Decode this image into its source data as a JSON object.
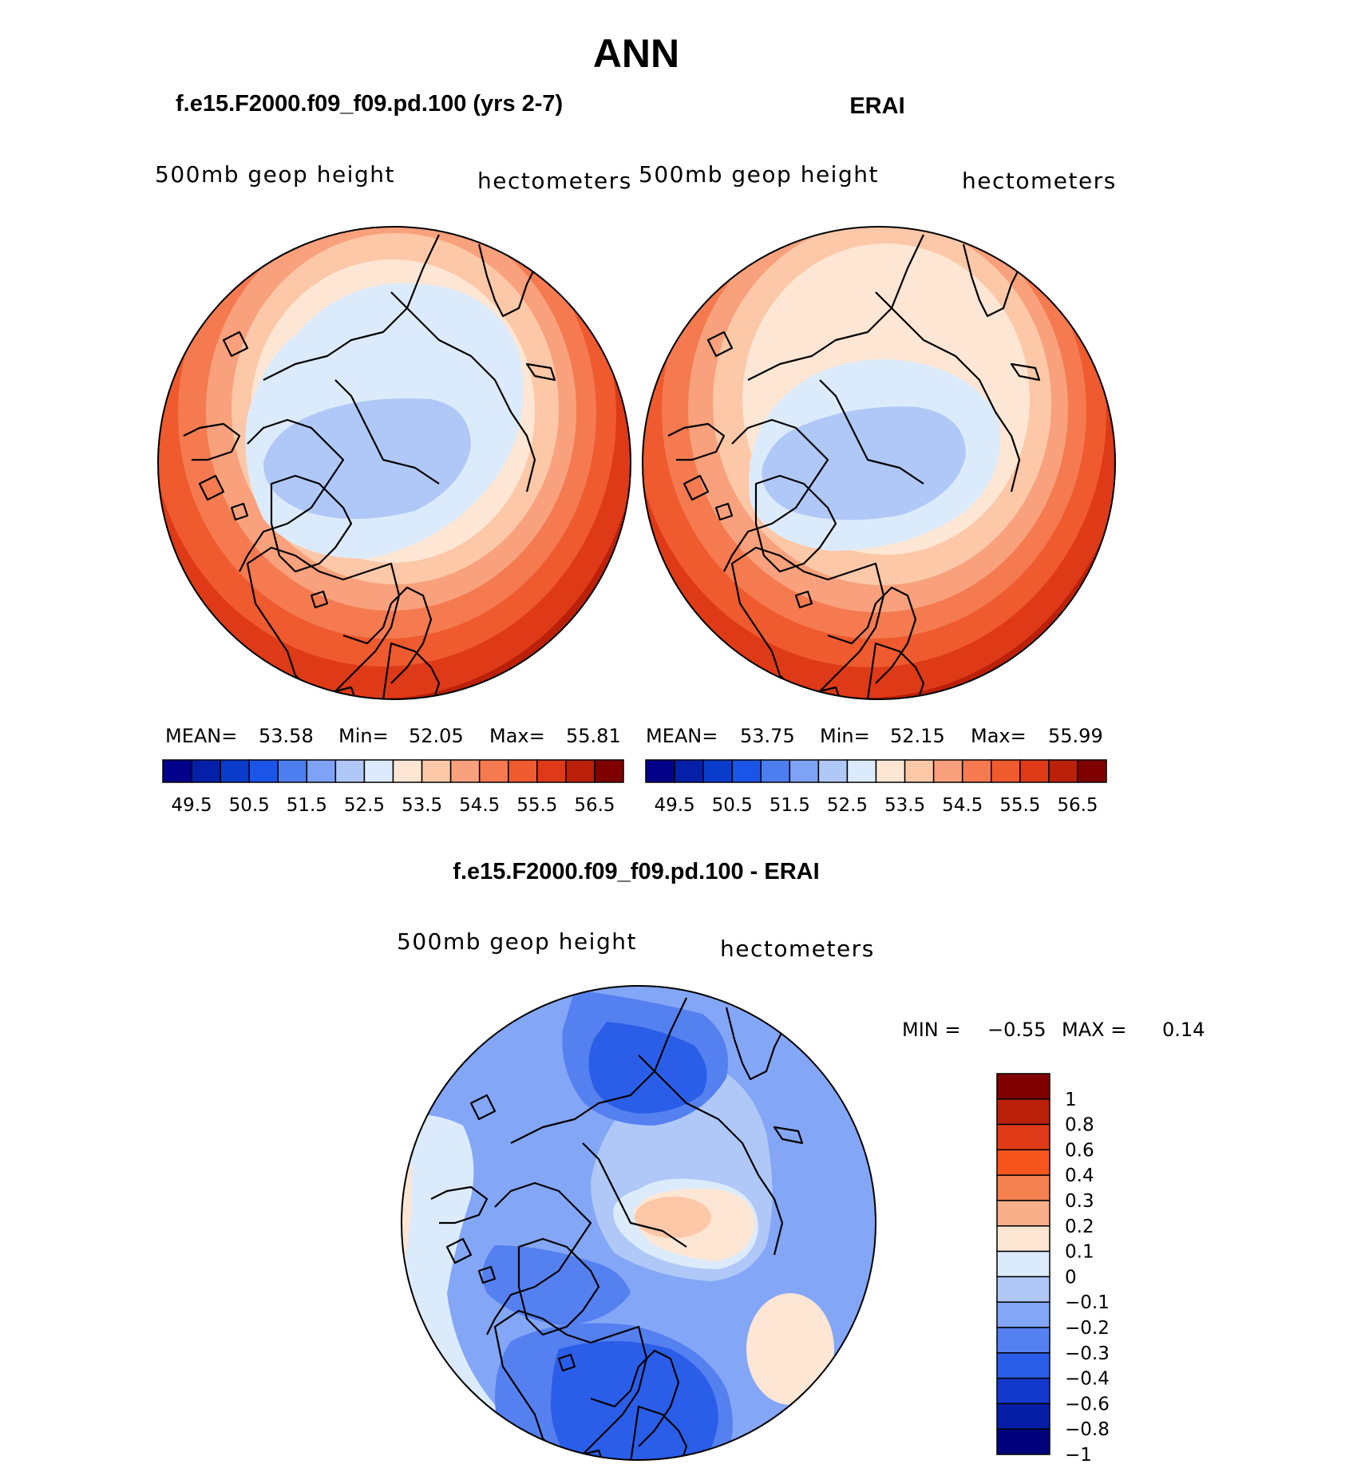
{
  "main_title": "ANN",
  "panels": {
    "left": {
      "case_title": "f.e15.F2000.f09_f09.pd.100 (yrs 2-7)",
      "variable_label": "500mb geop height",
      "units_label": "hectometers",
      "stats": {
        "mean_label": "MEAN=",
        "mean": "53.58",
        "min_label": "Min=",
        "min": "52.05",
        "max_label": "Max=",
        "max": "55.81"
      },
      "colorbar_labels": [
        "49.5",
        "50.5",
        "51.5",
        "52.5",
        "53.5",
        "54.5",
        "55.5",
        "56.5"
      ]
    },
    "right": {
      "case_title": "ERAI",
      "variable_label": "500mb geop height",
      "units_label": "hectometers",
      "stats": {
        "mean_label": "MEAN=",
        "mean": "53.75",
        "min_label": "Min=",
        "min": "52.15",
        "max_label": "Max=",
        "max": "55.99"
      },
      "colorbar_labels": [
        "49.5",
        "50.5",
        "51.5",
        "52.5",
        "53.5",
        "54.5",
        "55.5",
        "56.5"
      ]
    },
    "diff": {
      "case_title": "f.e15.F2000.f09_f09.pd.100 - ERAI",
      "variable_label": "500mb geop height",
      "units_label": "hectometers",
      "min_label": "MIN =",
      "min": "−0.55",
      "max_label": "MAX =",
      "max": "0.14",
      "colorbar_labels": [
        "1",
        "0.8",
        "0.6",
        "0.4",
        "0.3",
        "0.2",
        "0.1",
        "0",
        "−0.1",
        "−0.2",
        "−0.3",
        "−0.4",
        "−0.6",
        "−0.8",
        "−1"
      ]
    }
  },
  "colors": {
    "abs_palette": [
      "#03008a",
      "#0520a8",
      "#0a3ccc",
      "#1a55e8",
      "#4c7ef0",
      "#7ea2f5",
      "#b0c8f8",
      "#dcebfb",
      "#fde6d4",
      "#fcc8a8",
      "#f9a17c",
      "#f57a50",
      "#ef5a2e",
      "#de3a18",
      "#bb2008",
      "#800000"
    ],
    "diff_palette": [
      "#800000",
      "#bb2008",
      "#de3a18",
      "#f6561e",
      "#f58050",
      "#f9ae8a",
      "#fde6d4",
      "#dcebfb",
      "#b0c8f8",
      "#84a6f6",
      "#5580f0",
      "#2a5ee8",
      "#1238cc",
      "#061ea6",
      "#00007a"
    ]
  }
}
